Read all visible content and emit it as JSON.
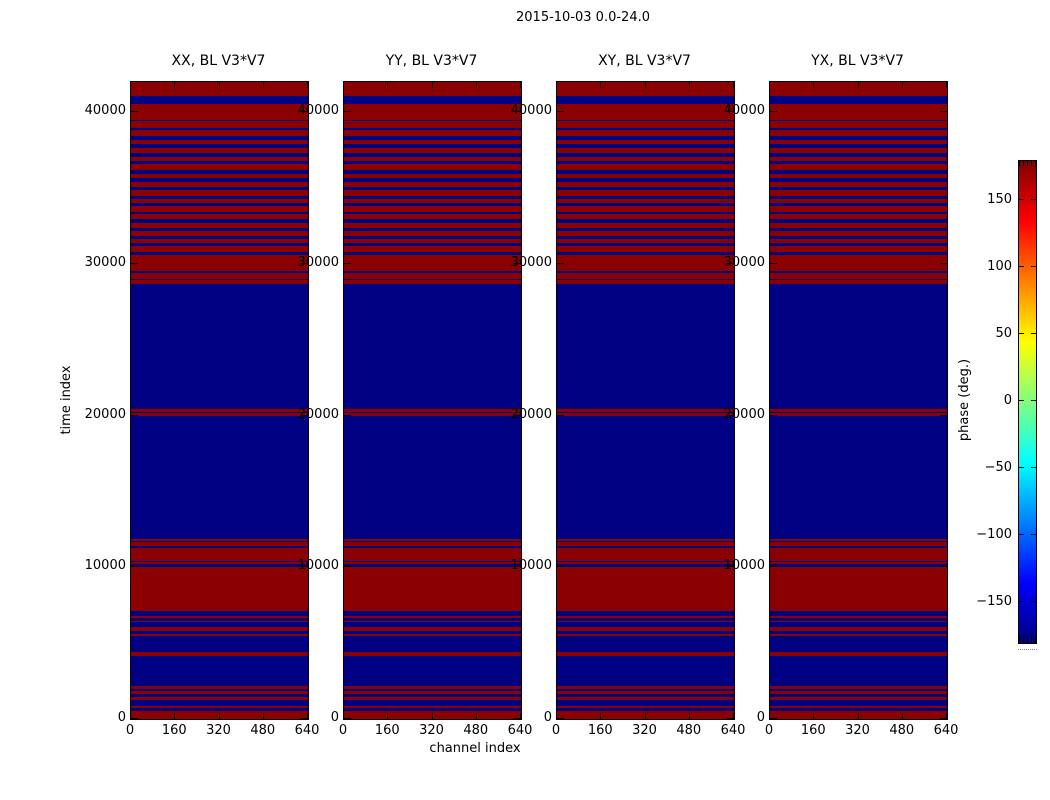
{
  "title": "2015-10-03 0.0-24.0",
  "xlabel": "channel index",
  "ylabel": "time index",
  "colorbar": {
    "label": "phase (deg.)",
    "vmin": -180,
    "vmax": 180,
    "tick_values": [
      150,
      100,
      50,
      0,
      -50,
      -100,
      -150
    ],
    "tick_labels": [
      "150",
      "100",
      "50",
      "0",
      "−50",
      "−100",
      "−150"
    ],
    "gradient_colors": [
      "#800000",
      "#ff0000",
      "#ffff00",
      "#00ffff",
      "#0000ff",
      "#000080"
    ],
    "gradient_stops_pct": [
      0,
      12.5,
      37.5,
      62.5,
      87.5,
      100
    ]
  },
  "chart_data": {
    "type": "heatmap",
    "title": "2015-10-03 0.0-24.0",
    "xlabel": "channel index",
    "ylabel": "time index",
    "colorbar_label": "phase (deg.)",
    "subplots": [
      {
        "title": "XX, BL V3*V7"
      },
      {
        "title": "YY, BL V3*V7"
      },
      {
        "title": "XY, BL V3*V7"
      },
      {
        "title": "YX, BL V3*V7"
      }
    ],
    "xlim": [
      0,
      640
    ],
    "ylim": [
      0,
      42000
    ],
    "x_tick_values": [
      0,
      160,
      320,
      480,
      640
    ],
    "x_tick_labels": [
      "0",
      "160",
      "320",
      "480",
      "640"
    ],
    "y_tick_values": [
      0,
      10000,
      20000,
      30000,
      40000
    ],
    "y_tick_labels": [
      "0",
      "10000",
      "20000",
      "30000",
      "40000"
    ],
    "value_colors": {
      "r": "#8b0000",
      "b": "#000083"
    },
    "value_legend": {
      "r": "phase near +180 deg",
      "b": "phase near -180 deg"
    },
    "bands_fraction_from_top": [
      [
        0.0,
        "r"
      ],
      [
        0.022,
        "b"
      ],
      [
        0.0345,
        "r"
      ],
      [
        0.0597,
        "b"
      ],
      [
        0.062,
        "r"
      ],
      [
        0.0722,
        "b"
      ],
      [
        0.0746,
        "r"
      ],
      [
        0.0848,
        "b"
      ],
      [
        0.0911,
        "r"
      ],
      [
        0.0981,
        "b"
      ],
      [
        0.1036,
        "r"
      ],
      [
        0.1122,
        "b"
      ],
      [
        0.1177,
        "r"
      ],
      [
        0.124,
        "b"
      ],
      [
        0.1295,
        "r"
      ],
      [
        0.1389,
        "b"
      ],
      [
        0.1444,
        "r"
      ],
      [
        0.1515,
        "b"
      ],
      [
        0.157,
        "r"
      ],
      [
        0.1648,
        "b"
      ],
      [
        0.1703,
        "r"
      ],
      [
        0.1782,
        "b"
      ],
      [
        0.1829,
        "r"
      ],
      [
        0.19,
        "b"
      ],
      [
        0.1954,
        "r"
      ],
      [
        0.2033,
        "b"
      ],
      [
        0.208,
        "r"
      ],
      [
        0.2151,
        "b"
      ],
      [
        0.2206,
        "r"
      ],
      [
        0.2292,
        "b"
      ],
      [
        0.2339,
        "r"
      ],
      [
        0.241,
        "b"
      ],
      [
        0.2457,
        "r"
      ],
      [
        0.2535,
        "b"
      ],
      [
        0.2582,
        "r"
      ],
      [
        0.2669,
        "b"
      ],
      [
        0.2716,
        "r"
      ],
      [
        0.2967,
        "b"
      ],
      [
        0.2991,
        "r"
      ],
      [
        0.3085,
        "b"
      ],
      [
        0.3108,
        "r"
      ],
      [
        0.3179,
        "b"
      ],
      [
        0.5141,
        "r"
      ],
      [
        0.5181,
        "b"
      ],
      [
        0.5196,
        "r"
      ],
      [
        0.5243,
        "b"
      ],
      [
        0.717,
        "r"
      ],
      [
        0.7206,
        "b"
      ],
      [
        0.7221,
        "r"
      ],
      [
        0.7284,
        "b"
      ],
      [
        0.7323,
        "r"
      ],
      [
        0.7512,
        "b"
      ],
      [
        0.7543,
        "r"
      ],
      [
        0.7567,
        "b"
      ],
      [
        0.7606,
        "r"
      ],
      [
        0.8305,
        "b"
      ],
      [
        0.8383,
        "r"
      ],
      [
        0.8422,
        "b"
      ],
      [
        0.8454,
        "r"
      ],
      [
        0.8485,
        "b"
      ],
      [
        0.8556,
        "r"
      ],
      [
        0.8619,
        "b"
      ],
      [
        0.8658,
        "r"
      ],
      [
        0.8697,
        "b"
      ],
      [
        0.8956,
        "r"
      ],
      [
        0.9019,
        "b"
      ],
      [
        0.9482,
        "r"
      ],
      [
        0.9529,
        "b"
      ],
      [
        0.9568,
        "r"
      ],
      [
        0.9615,
        "b"
      ],
      [
        0.9654,
        "r"
      ],
      [
        0.9709,
        "b"
      ],
      [
        0.9796,
        "r"
      ],
      [
        0.9827,
        "b"
      ],
      [
        0.9874,
        "r"
      ]
    ]
  }
}
